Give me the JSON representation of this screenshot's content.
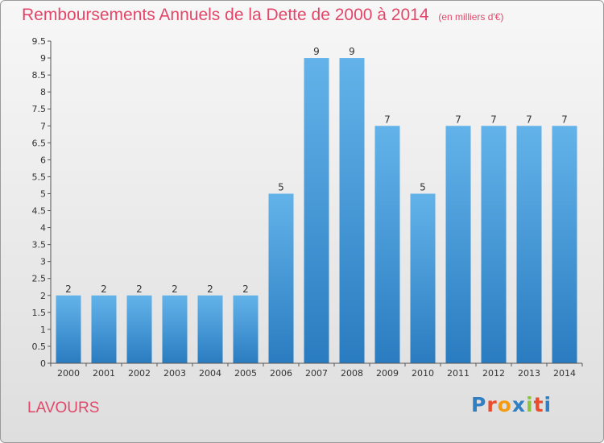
{
  "header": {
    "title": "Remboursements Annuels de la Dette de 2000 à 2014",
    "subtitle": "(en milliers d'€)"
  },
  "footer": {
    "location": "LAVOURS",
    "logo_text": "Proxiti",
    "logo_colors": [
      "#2f7fc2",
      "#e84d2d",
      "#f39c12",
      "#2f7fc2",
      "#8bc53f",
      "#e84d2d",
      "#2f7fc2"
    ]
  },
  "colors": {
    "title": "#e2476a",
    "bar_light": "#63b3ea",
    "bar_dark": "#2a7cc0",
    "axis": "#555555",
    "grid": "#999999"
  },
  "chart_data": {
    "type": "bar",
    "title": "Remboursements Annuels de la Dette de 2000 à 2014",
    "subtitle": "(en milliers d'€)",
    "xlabel": "",
    "ylabel": "",
    "categories": [
      "2000",
      "2001",
      "2002",
      "2003",
      "2004",
      "2005",
      "2006",
      "2007",
      "2008",
      "2009",
      "2010",
      "2011",
      "2012",
      "2013",
      "2014"
    ],
    "values": [
      2,
      2,
      2,
      2,
      2,
      2,
      5,
      9,
      9,
      7,
      5,
      7,
      7,
      7,
      7
    ],
    "ylim": [
      0,
      9.5
    ],
    "y_ticks": [
      "0",
      "0.5",
      "1",
      "1.5",
      "2",
      "2.5",
      "3",
      "3.5",
      "4",
      "4.5",
      "5",
      "5.5",
      "6",
      "6.5",
      "7",
      "7.5",
      "8",
      "8.5",
      "9",
      "9.5"
    ],
    "grid": false,
    "data_labels": true
  }
}
